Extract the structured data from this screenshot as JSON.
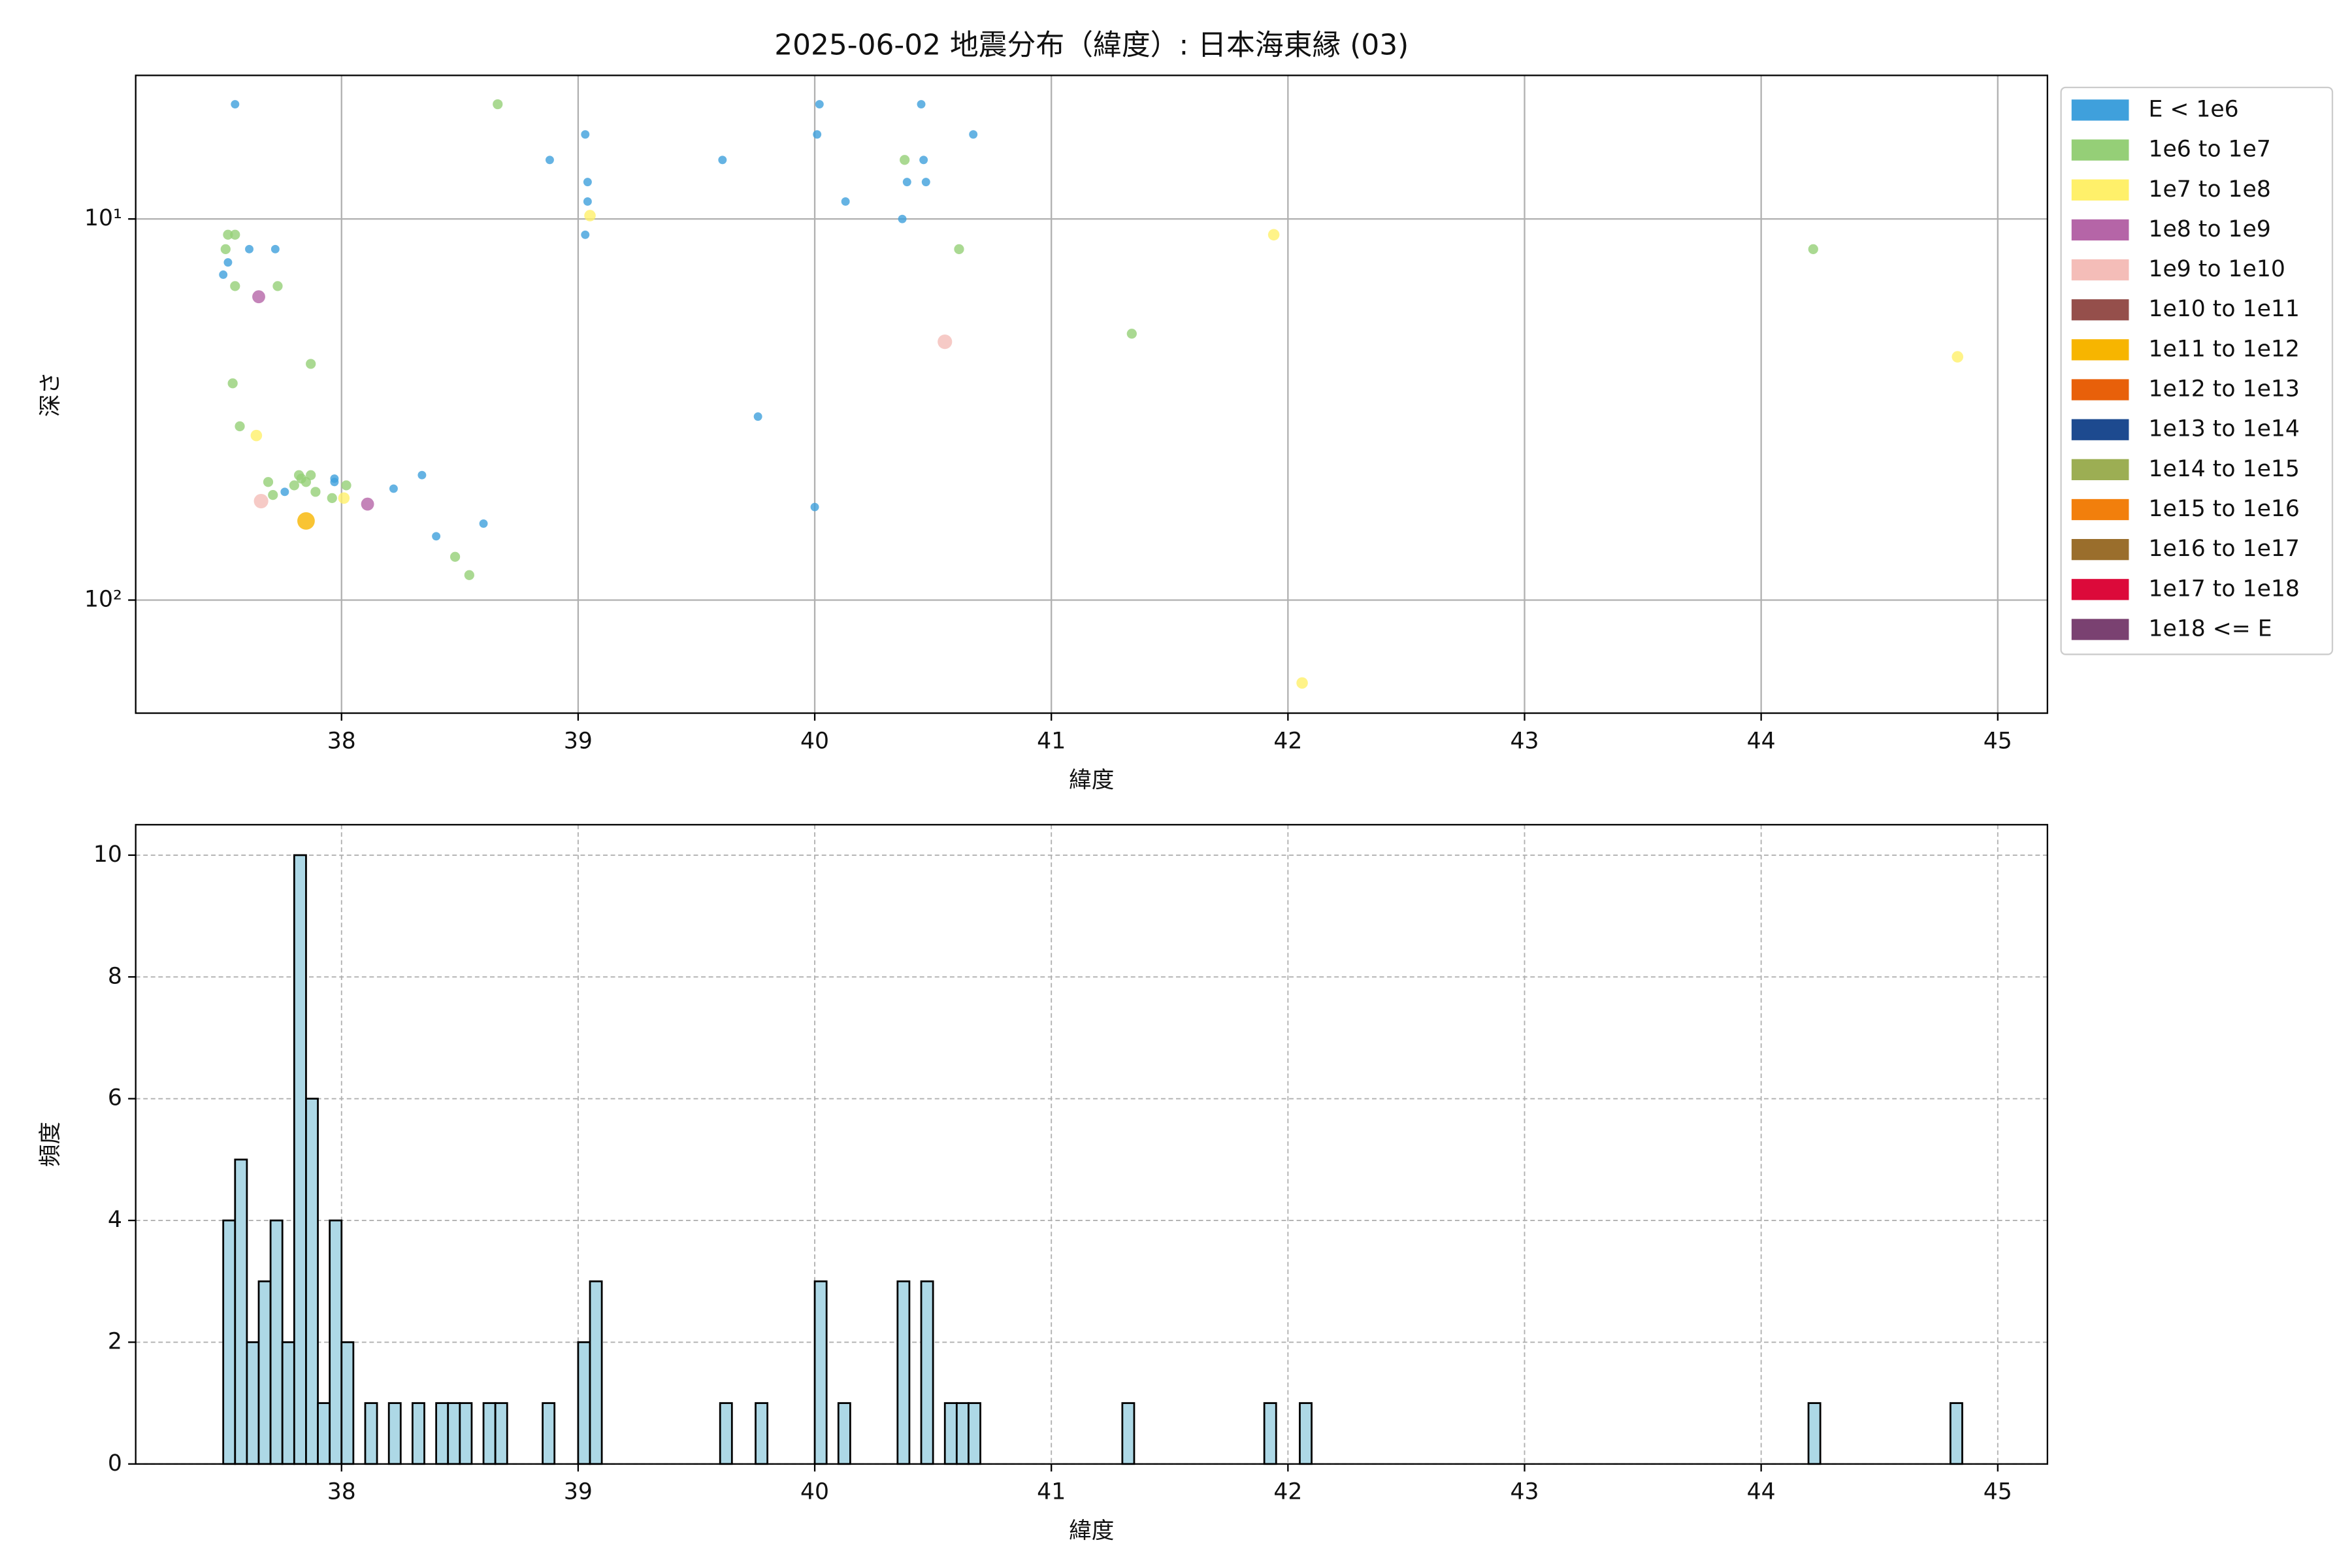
{
  "chart_data": [
    {
      "type": "scatter",
      "title": "2025-06-02 地震分布（緯度）: 日本海東縁 (03)",
      "x_label": "緯度",
      "y_label": "深さ",
      "xlim": [
        37.13,
        45.21
      ],
      "xticks": [
        38,
        39,
        40,
        41,
        42,
        43,
        44,
        45
      ],
      "ylim": [
        4.2,
        198
      ],
      "log_y": true,
      "y_inverted": true,
      "yticks": [
        {
          "value": 10,
          "label": "10¹"
        },
        {
          "value": 100,
          "label": "10²"
        }
      ],
      "grid": true,
      "legend": "outside-right",
      "series": [
        {
          "name": "E < 1e6",
          "color": "#3fa0dc",
          "x": [
            37.55,
            39.03,
            38.88,
            39.04,
            39.04,
            39.03,
            39.61,
            40.02,
            40.01,
            40.13,
            40.45,
            40.67,
            40.46,
            40.39,
            40.47,
            40.37,
            37.61,
            37.72,
            37.52,
            37.5,
            39.76,
            40.0,
            38.22,
            38.34,
            37.97,
            37.97,
            37.76,
            38.4,
            38.6
          ],
          "values": [
            5,
            6,
            7,
            8,
            9,
            11,
            7,
            5,
            6,
            9,
            5,
            6,
            7,
            8,
            8,
            10,
            12,
            12,
            13,
            14,
            33,
            57,
            51,
            47,
            48,
            49,
            52,
            68,
            63
          ]
        },
        {
          "name": "1e6 to 1e7",
          "color": "#95cf77",
          "x": [
            38.66,
            40.38,
            40.61,
            41.34,
            44.22,
            37.51,
            37.52,
            37.55,
            37.55,
            37.73,
            37.87,
            37.54,
            37.57,
            37.69,
            37.71,
            37.8,
            37.82,
            37.83,
            37.85,
            37.87,
            37.89,
            37.96,
            38.02,
            38.48,
            38.54
          ],
          "values": [
            5,
            7,
            12,
            20,
            12,
            12,
            11,
            11,
            15,
            15,
            24,
            27,
            35,
            49,
            53,
            50,
            47,
            48,
            49,
            47,
            52,
            54,
            50,
            77,
            86
          ]
        },
        {
          "name": "1e7 to 1e8",
          "color": "#fff06a",
          "x": [
            39.05,
            41.94,
            44.83,
            42.06,
            37.64,
            38.01
          ],
          "values": [
            9.8,
            11,
            23,
            165,
            37,
            54
          ]
        },
        {
          "name": "1e8 to 1e9",
          "color": "#b565a7",
          "x": [
            37.65,
            38.11
          ],
          "values": [
            16,
            56
          ]
        },
        {
          "name": "1e9 to 1e10",
          "color": "#f4bdb8",
          "x": [
            40.55,
            37.66
          ],
          "values": [
            21,
            55
          ]
        },
        {
          "name": "1e10 to 1e11",
          "color": "#954f4b",
          "x": [],
          "values": []
        },
        {
          "name": "1e11 to 1e12",
          "color": "#f7b500",
          "x": [
            37.85
          ],
          "values": [
            62
          ]
        },
        {
          "name": "1e12 to 1e13",
          "color": "#e8600a",
          "x": [],
          "values": []
        },
        {
          "name": "1e13 to 1e14",
          "color": "#1d4a8f",
          "x": [],
          "values": []
        },
        {
          "name": "1e14 to 1e15",
          "color": "#9cae53",
          "x": [],
          "values": []
        },
        {
          "name": "1e15 to 1e16",
          "color": "#f27f0c",
          "x": [],
          "values": []
        },
        {
          "name": "1e16 to 1e17",
          "color": "#9a6e2c",
          "x": [],
          "values": []
        },
        {
          "name": "1e17 to 1e18",
          "color": "#dc0a3a",
          "x": [],
          "values": []
        },
        {
          "name": "1e18 <= E",
          "color": "#7a4171",
          "x": [],
          "values": []
        }
      ]
    },
    {
      "type": "histogram",
      "x_label": "緯度",
      "y_label": "頻度",
      "xlim": [
        37.13,
        45.21
      ],
      "xticks": [
        38,
        39,
        40,
        41,
        42,
        43,
        44,
        45
      ],
      "ylim": [
        0,
        10.5
      ],
      "yticks": [
        0,
        2,
        4,
        6,
        8,
        10
      ],
      "grid": true,
      "color": "#add8e6",
      "edge_color": "#000000",
      "bins": [
        37.5,
        37.55,
        37.6,
        37.65,
        37.7,
        37.75,
        37.8,
        37.85,
        37.9,
        37.95,
        38.0,
        38.05,
        38.1,
        38.15,
        38.2,
        38.25,
        38.3,
        38.35,
        38.4,
        38.45,
        38.5,
        38.55,
        38.6,
        38.65,
        38.7,
        38.75,
        38.8,
        38.85,
        38.9,
        38.95,
        39.0,
        39.05,
        39.1,
        39.15,
        39.2,
        39.25,
        39.3,
        39.35,
        39.4,
        39.45,
        39.5,
        39.55,
        39.6,
        39.65,
        39.7,
        39.75,
        39.8,
        39.85,
        39.9,
        39.95,
        40.0,
        40.05,
        40.1,
        40.15,
        40.2,
        40.25,
        40.3,
        40.35,
        40.4,
        40.45,
        40.5,
        40.55,
        40.6,
        40.65,
        40.7,
        40.75,
        40.8,
        40.85,
        40.9,
        40.95,
        41.0,
        41.05,
        41.1,
        41.15,
        41.2,
        41.25,
        41.3,
        41.35,
        41.4,
        41.45,
        41.5,
        41.55,
        41.6,
        41.65,
        41.7,
        41.75,
        41.8,
        41.85,
        41.9,
        41.95,
        42.0,
        42.05,
        42.1,
        42.15,
        42.2,
        42.25,
        42.3,
        42.35,
        42.4,
        42.45,
        42.5,
        42.55,
        42.6,
        42.65,
        42.7,
        42.75,
        42.8,
        42.85,
        42.9,
        42.95,
        43.0,
        43.05,
        43.1,
        43.15,
        43.2,
        43.25,
        43.3,
        43.35,
        43.4,
        43.45,
        43.5,
        43.55,
        43.6,
        43.65,
        43.7,
        43.75,
        43.8,
        43.85,
        43.9,
        43.95,
        44.0,
        44.05,
        44.1,
        44.15,
        44.2,
        44.25,
        44.3,
        44.35,
        44.4,
        44.45,
        44.5,
        44.55,
        44.6,
        44.65,
        44.7,
        44.75,
        44.8,
        44.85
      ],
      "counts": [
        4,
        5,
        2,
        3,
        4,
        2,
        10,
        6,
        1,
        4,
        2,
        0,
        1,
        0,
        1,
        0,
        1,
        0,
        1,
        1,
        1,
        0,
        1,
        1,
        0,
        0,
        0,
        1,
        0,
        0,
        2,
        3,
        0,
        0,
        0,
        0,
        0,
        0,
        0,
        0,
        0,
        0,
        1,
        0,
        0,
        1,
        0,
        0,
        0,
        0,
        3,
        0,
        1,
        0,
        0,
        0,
        0,
        3,
        0,
        3,
        0,
        1,
        1,
        1,
        0,
        0,
        0,
        0,
        0,
        0,
        0,
        0,
        0,
        0,
        0,
        0,
        1,
        0,
        0,
        0,
        0,
        0,
        0,
        0,
        0,
        0,
        0,
        0,
        1,
        0,
        0,
        1,
        0,
        0,
        0,
        0,
        0,
        0,
        0,
        0,
        0,
        0,
        0,
        0,
        0,
        0,
        0,
        0,
        0,
        0,
        0,
        0,
        0,
        0,
        0,
        0,
        0,
        0,
        0,
        0,
        0,
        0,
        0,
        0,
        0,
        0,
        0,
        0,
        0,
        0,
        0,
        0,
        0,
        0,
        1,
        0,
        0,
        0,
        0,
        0,
        0,
        0,
        0,
        0,
        0,
        0,
        1
      ]
    }
  ]
}
